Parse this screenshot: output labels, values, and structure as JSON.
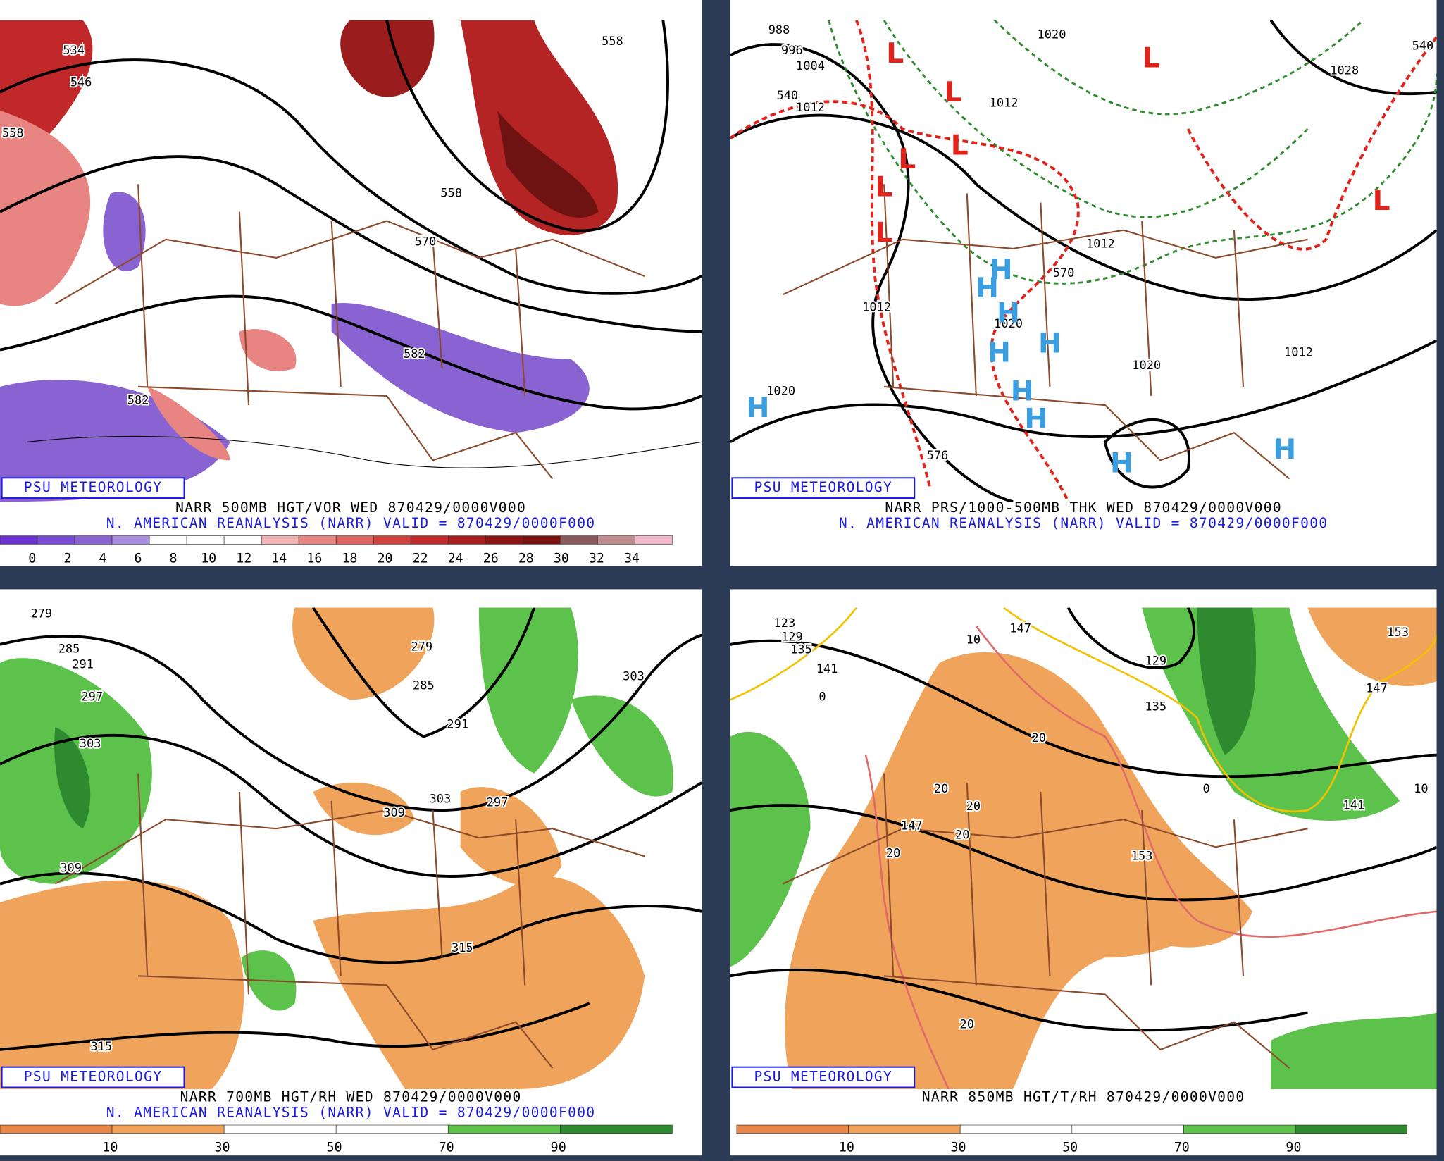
{
  "panels": [
    {
      "brand": "PSU METEOROLOGY",
      "line1": "NARR 500MB HGT/VOR WED 870429/0000V000",
      "line2": "N. AMERICAN REANALYSIS (NARR) VALID = 870429/0000F000",
      "colorbar_labels": [
        "0",
        "2",
        "4",
        "6",
        "8",
        "10",
        "12",
        "14",
        "16",
        "18",
        "20",
        "22",
        "24",
        "26",
        "28",
        "30",
        "32",
        "34"
      ],
      "contour_labels": [
        "534",
        "546",
        "558",
        "558",
        "558",
        "570",
        "582",
        "582"
      ],
      "center_labels": []
    },
    {
      "brand": "PSU METEOROLOGY",
      "line1": "NARR PRS/1000-500MB THK WED 870429/0000V000",
      "line2": "N. AMERICAN REANALYSIS (NARR) VALID = 870429/0000F000",
      "colorbar_labels": [],
      "contour_labels": [
        "988",
        "996",
        "1004",
        "1012",
        "1012",
        "1020",
        "1028",
        "1020",
        "1020",
        "1012",
        "1012",
        "1012",
        "1020",
        "540",
        "570",
        "576",
        "540"
      ],
      "center_labels": [
        "L",
        "L",
        "L",
        "L",
        "L",
        "L",
        "L",
        "L",
        "H",
        "H",
        "H",
        "H",
        "H",
        "H",
        "H",
        "H",
        "H",
        "H"
      ]
    },
    {
      "brand": "PSU METEOROLOGY",
      "line1": "NARR 700MB HGT/RH WED 870429/0000V000",
      "line2": "N. AMERICAN REANALYSIS (NARR) VALID = 870429/0000F000",
      "colorbar_labels": [
        "10",
        "30",
        "50",
        "70",
        "90"
      ],
      "contour_labels": [
        "279",
        "279",
        "285",
        "285",
        "291",
        "291",
        "297",
        "297",
        "303",
        "303",
        "309",
        "309",
        "315",
        "315",
        "303"
      ],
      "center_labels": []
    },
    {
      "brand": "PSU METEOROLOGY",
      "line1": "NARR 850MB HGT/T/RH 870429/0000V000",
      "colorbar_labels": [
        "10",
        "30",
        "50",
        "70",
        "90"
      ],
      "contour_labels": [
        "123",
        "129",
        "135",
        "141",
        "147",
        "129",
        "135",
        "141",
        "147",
        "153",
        "147",
        "153",
        "0",
        "10",
        "20",
        "20",
        "20",
        "20",
        "20",
        "20",
        "0",
        "10"
      ],
      "center_labels": []
    }
  ]
}
